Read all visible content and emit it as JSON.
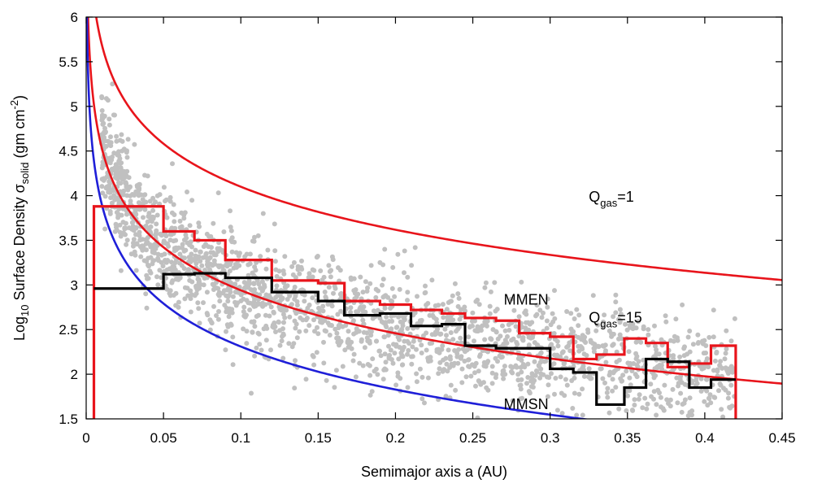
{
  "chart_data": {
    "type": "scatter",
    "title": "",
    "xlabel": "Semimajor axis a (AU)",
    "ylabel_parts": {
      "base": "Log",
      "base_sub": "10",
      "mid": " Surface Density σ",
      "sigma_sub": "solid",
      "unit": " (gm cm",
      "unit_sup": "-2",
      "close": ")"
    },
    "xlim": [
      0,
      0.45
    ],
    "ylim": [
      1.5,
      6
    ],
    "x_ticks": [
      {
        "v": 0,
        "label": "0"
      },
      {
        "v": 0.05,
        "label": "0.05"
      },
      {
        "v": 0.1,
        "label": "0.1"
      },
      {
        "v": 0.15,
        "label": "0.15"
      },
      {
        "v": 0.2,
        "label": "0.2"
      },
      {
        "v": 0.25,
        "label": "0.25"
      },
      {
        "v": 0.3,
        "label": "0.3"
      },
      {
        "v": 0.35,
        "label": "0.35"
      },
      {
        "v": 0.4,
        "label": "0.4"
      },
      {
        "v": 0.45,
        "label": "0.45"
      }
    ],
    "y_ticks": [
      {
        "v": 1.5,
        "label": "1.5"
      },
      {
        "v": 2,
        "label": "2"
      },
      {
        "v": 2.5,
        "label": "2.5"
      },
      {
        "v": 3,
        "label": "3"
      },
      {
        "v": 3.5,
        "label": "3.5"
      },
      {
        "v": 4,
        "label": "4"
      },
      {
        "v": 4.5,
        "label": "4.5"
      },
      {
        "v": 5,
        "label": "5"
      },
      {
        "v": 5.5,
        "label": "5.5"
      },
      {
        "v": 6,
        "label": "6"
      }
    ],
    "curves": [
      {
        "name": "Q_gas=1",
        "color": "#e8141b",
        "logC": 2.5,
        "slope": 1.6
      },
      {
        "name": "MMEN",
        "color": "#e8141b",
        "logC": 1.34,
        "slope": 1.6
      },
      {
        "name": "MMSN",
        "color": "#1f1fd8",
        "logC": 0.71,
        "slope": 1.6
      }
    ],
    "histograms": [
      {
        "name": "red histogram",
        "color": "#e8141b",
        "x_start": 0.005,
        "drop_to": 1.5,
        "steps": [
          {
            "x1": 0.05,
            "y": 3.88
          },
          {
            "x1": 0.07,
            "y": 3.6
          },
          {
            "x1": 0.09,
            "y": 3.5
          },
          {
            "x1": 0.12,
            "y": 3.28
          },
          {
            "x1": 0.15,
            "y": 3.05
          },
          {
            "x1": 0.167,
            "y": 3.02
          },
          {
            "x1": 0.19,
            "y": 2.82
          },
          {
            "x1": 0.21,
            "y": 2.78
          },
          {
            "x1": 0.23,
            "y": 2.72
          },
          {
            "x1": 0.245,
            "y": 2.68
          },
          {
            "x1": 0.265,
            "y": 2.63
          },
          {
            "x1": 0.28,
            "y": 2.6
          },
          {
            "x1": 0.3,
            "y": 2.46
          },
          {
            "x1": 0.315,
            "y": 2.42
          },
          {
            "x1": 0.33,
            "y": 2.17
          },
          {
            "x1": 0.348,
            "y": 2.22
          },
          {
            "x1": 0.362,
            "y": 2.4
          },
          {
            "x1": 0.376,
            "y": 2.35
          },
          {
            "x1": 0.39,
            "y": 2.08
          },
          {
            "x1": 0.404,
            "y": 2.12
          },
          {
            "x1": 0.42,
            "y": 2.32
          }
        ]
      },
      {
        "name": "black histogram",
        "color": "#000000",
        "x_start": 0.005,
        "drop_to": null,
        "steps": [
          {
            "x1": 0.05,
            "y": 2.96
          },
          {
            "x1": 0.07,
            "y": 3.12
          },
          {
            "x1": 0.09,
            "y": 3.13
          },
          {
            "x1": 0.12,
            "y": 3.08
          },
          {
            "x1": 0.15,
            "y": 2.92
          },
          {
            "x1": 0.167,
            "y": 2.82
          },
          {
            "x1": 0.19,
            "y": 2.66
          },
          {
            "x1": 0.21,
            "y": 2.68
          },
          {
            "x1": 0.23,
            "y": 2.54
          },
          {
            "x1": 0.245,
            "y": 2.56
          },
          {
            "x1": 0.265,
            "y": 2.32
          },
          {
            "x1": 0.28,
            "y": 2.29
          },
          {
            "x1": 0.3,
            "y": 2.29
          },
          {
            "x1": 0.315,
            "y": 2.06
          },
          {
            "x1": 0.33,
            "y": 2.02
          },
          {
            "x1": 0.348,
            "y": 1.66
          },
          {
            "x1": 0.362,
            "y": 1.85
          },
          {
            "x1": 0.376,
            "y": 2.17
          },
          {
            "x1": 0.39,
            "y": 2.14
          },
          {
            "x1": 0.404,
            "y": 1.85
          },
          {
            "x1": 0.42,
            "y": 1.94
          }
        ]
      }
    ],
    "scatter": {
      "name": "planet samples",
      "color": "#c0c0c0",
      "count": 2100,
      "seed": 12345,
      "x_range": [
        0.01,
        0.42
      ],
      "spread": 0.3
    },
    "annotations": [
      {
        "id": "qgas1",
        "x": 0.325,
        "y": 3.93,
        "text": "Q",
        "sub": "gas",
        "tail": "=1"
      },
      {
        "id": "mmen",
        "x": 0.27,
        "y": 2.78,
        "text": "MMEN",
        "sub": "",
        "tail": ""
      },
      {
        "id": "qgas15",
        "x": 0.325,
        "y": 2.58,
        "text": "Q",
        "sub": "gas",
        "tail": "=15"
      },
      {
        "id": "mmsn",
        "x": 0.27,
        "y": 1.61,
        "text": "MMSN",
        "sub": "",
        "tail": ""
      }
    ]
  }
}
